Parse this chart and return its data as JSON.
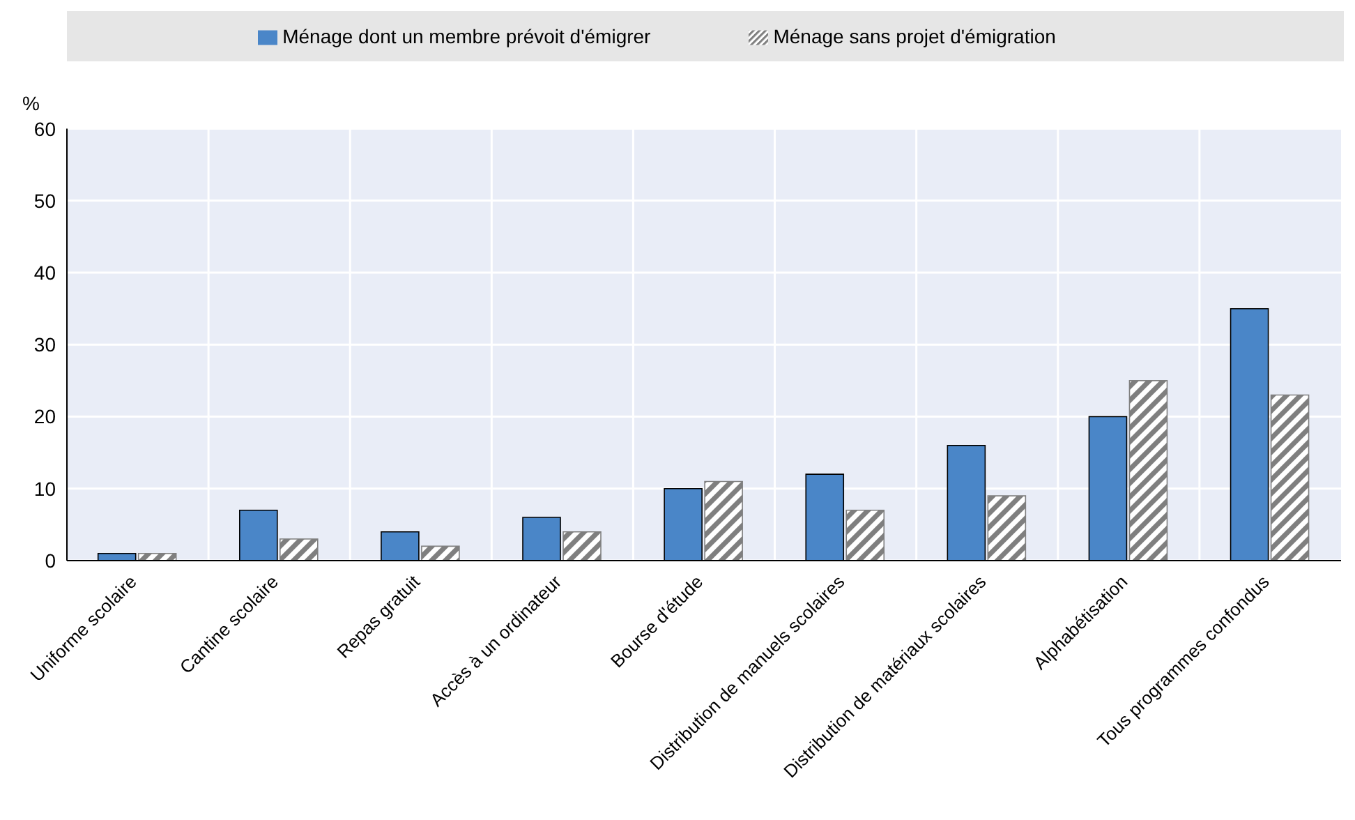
{
  "chart_data": {
    "type": "bar",
    "ylabel": "%",
    "categories": [
      "Uniforme scolaire",
      "Cantine scolaire",
      "Repas gratuit",
      "Accès à un ordinateur",
      "Bourse d'étude",
      "Distribution de manuels scolaires",
      "Distribution de matériaux scolaires",
      "Alphabétisation",
      "Tous programmes confondus"
    ],
    "series": [
      {
        "name": "Ménage dont un membre prévoit d'émigrer",
        "color": "#4a86c8",
        "values": [
          1,
          7,
          4,
          6,
          10,
          12,
          16,
          20,
          35
        ]
      },
      {
        "name": "Ménage sans projet d'émigration",
        "color": "#7f7f7f",
        "values": [
          1,
          3,
          2,
          4,
          11,
          7,
          9,
          25,
          23
        ]
      }
    ],
    "ylim": [
      0,
      60
    ],
    "yticks": [
      0,
      10,
      20,
      30,
      40,
      50,
      60
    ],
    "grid": true,
    "legend": "top"
  }
}
